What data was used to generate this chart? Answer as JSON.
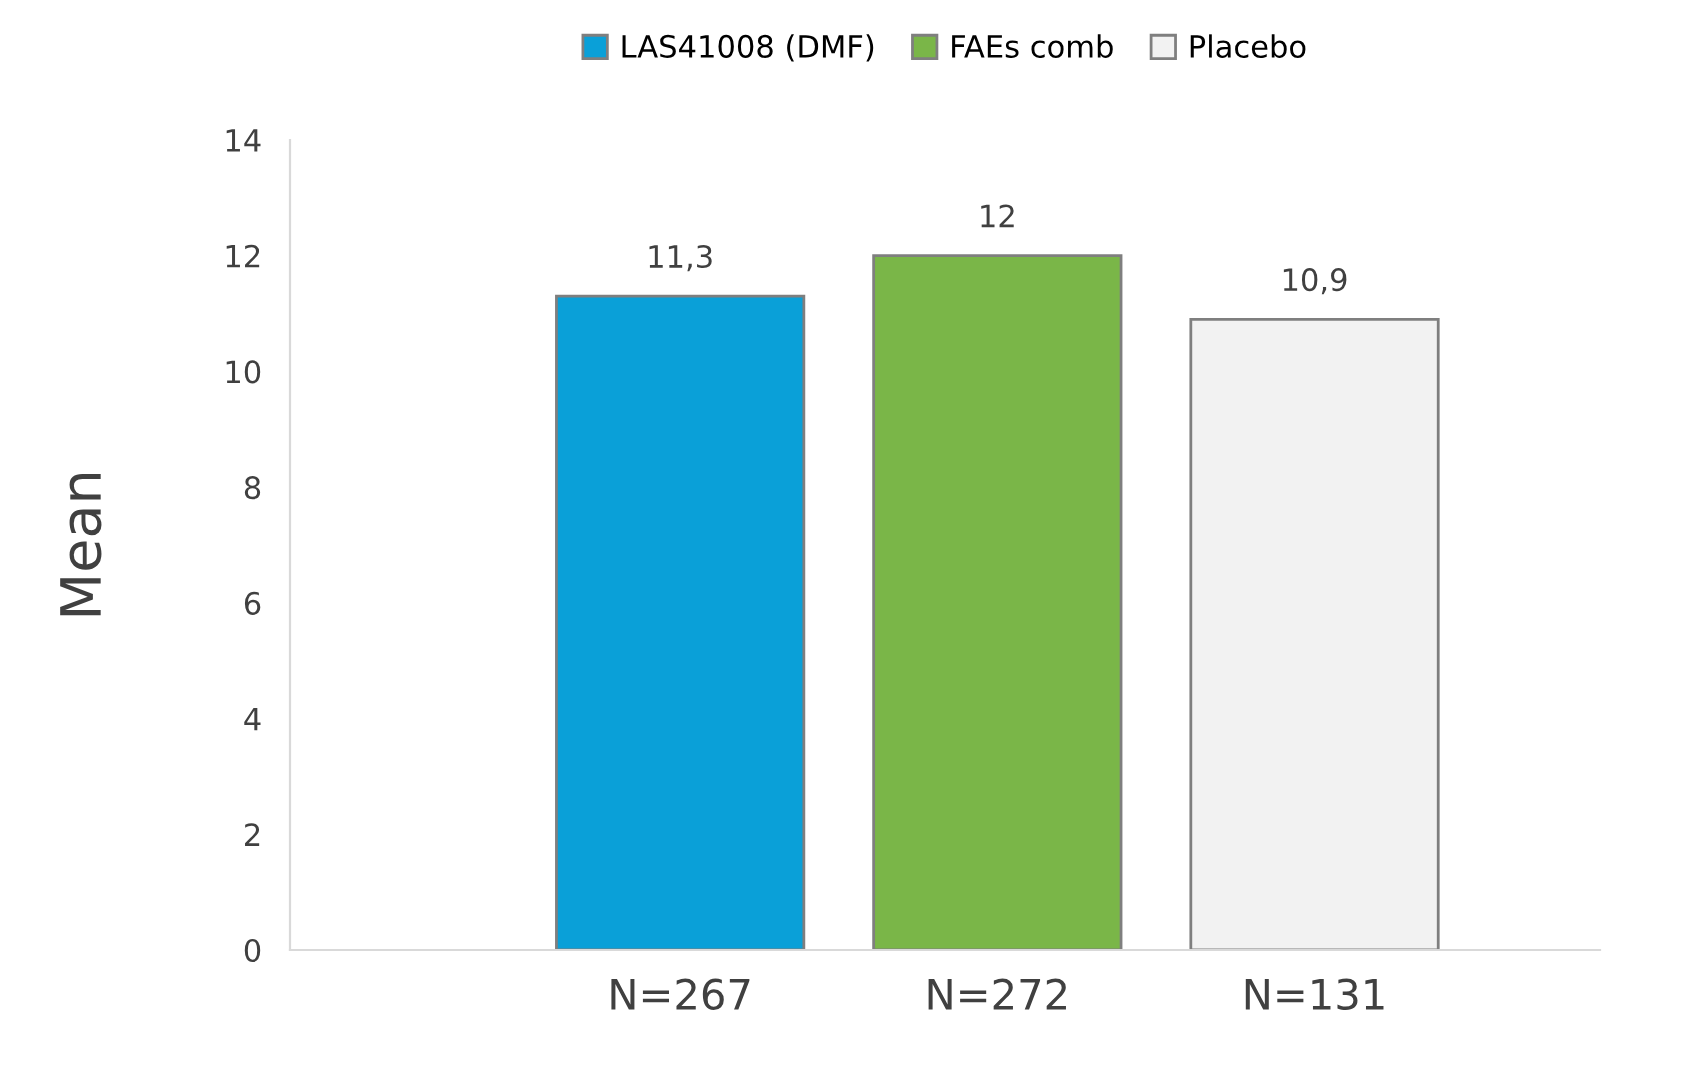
{
  "chart_data": {
    "type": "bar",
    "ylabel": "Mean",
    "categories": [
      "N=267",
      "N=272",
      "N=131"
    ],
    "series": [
      {
        "name": "LAS41008 (DMF)",
        "color": "#0aa0d8",
        "values": [
          11.3,
          null,
          null
        ],
        "value_labels": [
          "11,3",
          null,
          null
        ]
      },
      {
        "name": "FAEs comb",
        "color": "#7ab648",
        "values": [
          null,
          12,
          null
        ],
        "value_labels": [
          null,
          "12",
          null
        ]
      },
      {
        "name": "Placebo",
        "color": "#f2f2f2",
        "values": [
          null,
          null,
          10.9
        ],
        "value_labels": [
          null,
          null,
          "10,9"
        ]
      }
    ],
    "ylim": [
      0,
      14
    ],
    "yticks": [
      0,
      2,
      4,
      6,
      8,
      10,
      12,
      14
    ],
    "grid": false,
    "legend": "top"
  }
}
